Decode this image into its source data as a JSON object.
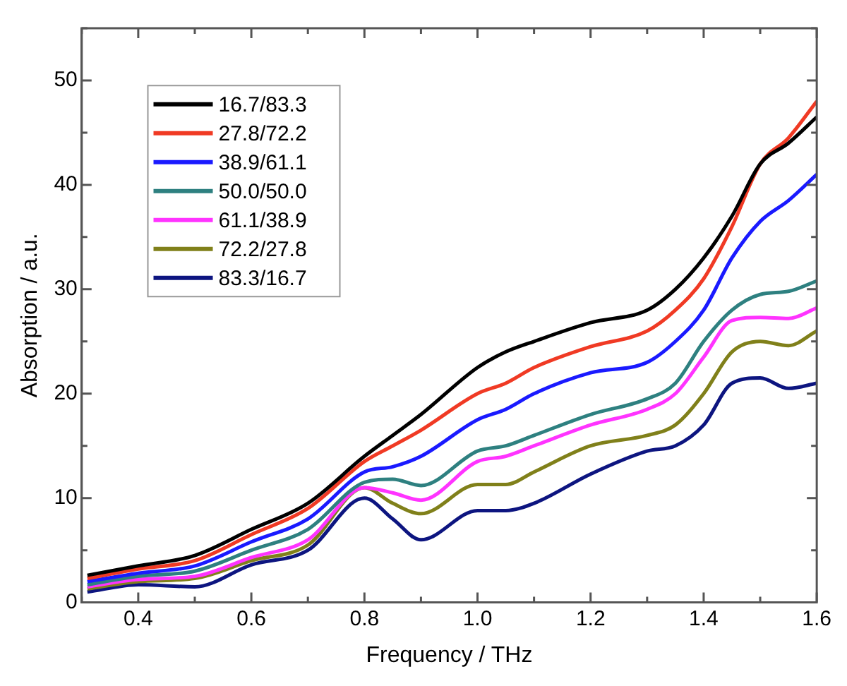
{
  "chart_data": {
    "type": "line",
    "xlabel": "Frequency / THz",
    "ylabel": "Absorption / a.u.",
    "x": [
      0.31,
      0.4,
      0.5,
      0.6,
      0.7,
      0.8,
      0.85,
      0.9,
      1.0,
      1.05,
      1.1,
      1.2,
      1.3,
      1.35,
      1.4,
      1.45,
      1.5,
      1.55,
      1.6
    ],
    "series": [
      {
        "name": "16.7/83.3",
        "color": "#000000",
        "values": [
          2.6,
          3.5,
          4.5,
          7,
          9.5,
          14,
          16,
          18,
          22.5,
          24,
          25,
          26.8,
          28,
          30,
          33,
          37,
          42,
          44,
          46.5
        ]
      },
      {
        "name": "27.8/72.2",
        "color": "#f03a24",
        "values": [
          2.3,
          3.2,
          4,
          6.5,
          9,
          13.5,
          15,
          16.5,
          20,
          21,
          22.5,
          24.5,
          26,
          28,
          31,
          36,
          42,
          44.5,
          48
        ]
      },
      {
        "name": "38.9/61.1",
        "color": "#1a1aff",
        "values": [
          2,
          2.8,
          3.5,
          5.8,
          8,
          12.5,
          13,
          14,
          17.5,
          18.5,
          20,
          22,
          23,
          25,
          28,
          33,
          36.5,
          38.5,
          41
        ]
      },
      {
        "name": "50.0/50.0",
        "color": "#2e8080",
        "values": [
          1.7,
          2.5,
          3,
          5,
          7,
          11.5,
          11.8,
          11.2,
          14.5,
          15,
          16,
          18,
          19.5,
          21,
          25,
          28,
          29.5,
          29.8,
          30.8
        ]
      },
      {
        "name": "61.1/38.9",
        "color": "#ff33ff",
        "values": [
          1.5,
          2.2,
          2.5,
          4.3,
          6,
          11,
          10.5,
          9.8,
          13.5,
          14,
          15,
          17,
          18.5,
          20,
          23.5,
          27,
          27.3,
          27.2,
          28.2
        ]
      },
      {
        "name": "72.2/27.8",
        "color": "#80801a",
        "values": [
          1.3,
          2,
          2.3,
          4,
          5.5,
          11,
          9.5,
          8.5,
          11.3,
          11.3,
          12.5,
          15,
          16,
          17,
          20,
          24,
          25,
          24.6,
          26
        ]
      },
      {
        "name": "83.3/16.7",
        "color": "#0d1580",
        "values": [
          1,
          1.7,
          1.5,
          3.6,
          5,
          10,
          8,
          6,
          8.8,
          8.8,
          9.5,
          12.3,
          14.5,
          15,
          17,
          21,
          21.5,
          20.5,
          21
        ]
      }
    ],
    "xlim": [
      0.3,
      1.6
    ],
    "xticks": [
      {
        "value": 0.3,
        "label": null
      },
      0.4,
      {
        "value": 0.5,
        "label": null
      },
      0.6,
      {
        "value": 0.7,
        "label": null
      },
      0.8,
      {
        "value": 0.9,
        "label": null
      },
      {
        "value": 1.0,
        "label": "1.0"
      },
      {
        "value": 1.1,
        "label": null
      },
      1.2,
      {
        "value": 1.3,
        "label": null
      },
      1.4,
      {
        "value": 1.5,
        "label": null
      },
      1.6
    ],
    "ylim": [
      0,
      55
    ],
    "yticks": [
      0,
      {
        "value": 5,
        "label": null
      },
      10,
      {
        "value": 15,
        "label": null
      },
      20,
      {
        "value": 25,
        "label": null
      },
      30,
      {
        "value": 35,
        "label": null
      },
      40,
      {
        "value": 45,
        "label": null
      },
      50,
      {
        "value": 55,
        "label": null
      }
    ],
    "grid": false,
    "legend": "top left",
    "marker": "none",
    "line_style": "solid"
  }
}
